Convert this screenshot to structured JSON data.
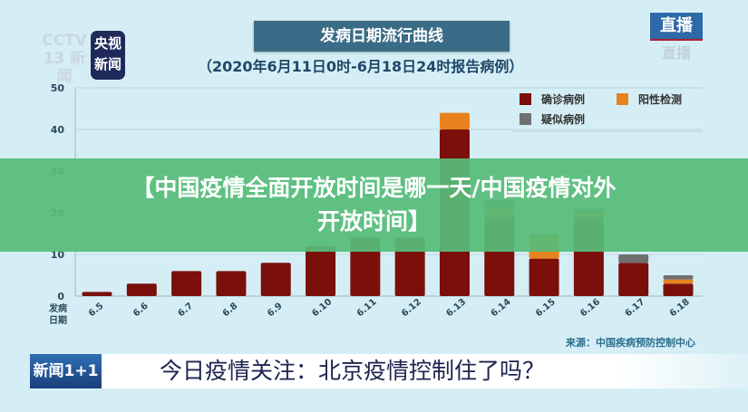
{
  "header": {
    "channel_logo": "CCTV 13 新闻",
    "app_logo": "央视新闻",
    "title": "发病日期流行曲线",
    "subtitle": "（2020年6月11日0时-6月18日24时报告病例）",
    "live_badge": "直播",
    "live_ghost": "直播"
  },
  "overlay_banner": {
    "line1": "【中国疫情全面开放时间是哪一天/中国疫情对外",
    "line2": "开放时间】"
  },
  "source": "来源：中国疾病预防控制中心",
  "lower_third": {
    "logo": "新闻1+1",
    "headline": "今日疫情关注：北京疫情控制住了吗？"
  },
  "chart_data": {
    "type": "bar",
    "stacked": true,
    "title": "发病日期流行曲线",
    "xlabel": "发病日期",
    "ylabel": "",
    "ylim": [
      0,
      50
    ],
    "yticks": [
      0,
      10,
      20,
      30,
      40,
      50
    ],
    "grid": true,
    "legend": "top-right",
    "categories": [
      "6.5",
      "6.6",
      "6.7",
      "6.8",
      "6.9",
      "6.10",
      "6.11",
      "6.12",
      "6.13",
      "6.14",
      "6.15",
      "6.16",
      "6.17",
      "6.18"
    ],
    "series": [
      {
        "name": "确诊病例",
        "color": "#7a0f0c",
        "values": [
          1,
          3,
          6,
          6,
          8,
          12,
          14,
          14,
          40,
          19,
          9,
          19,
          8,
          3
        ]
      },
      {
        "name": "阳性检测",
        "color": "#e8821e",
        "values": [
          0,
          0,
          0,
          0,
          0,
          0,
          0,
          0,
          4,
          2,
          6,
          1,
          0,
          1
        ]
      },
      {
        "name": "疑似病例",
        "color": "#6f6f72",
        "values": [
          0,
          0,
          0,
          0,
          0,
          0,
          0,
          0,
          0,
          2,
          0,
          1,
          2,
          1
        ]
      }
    ]
  }
}
